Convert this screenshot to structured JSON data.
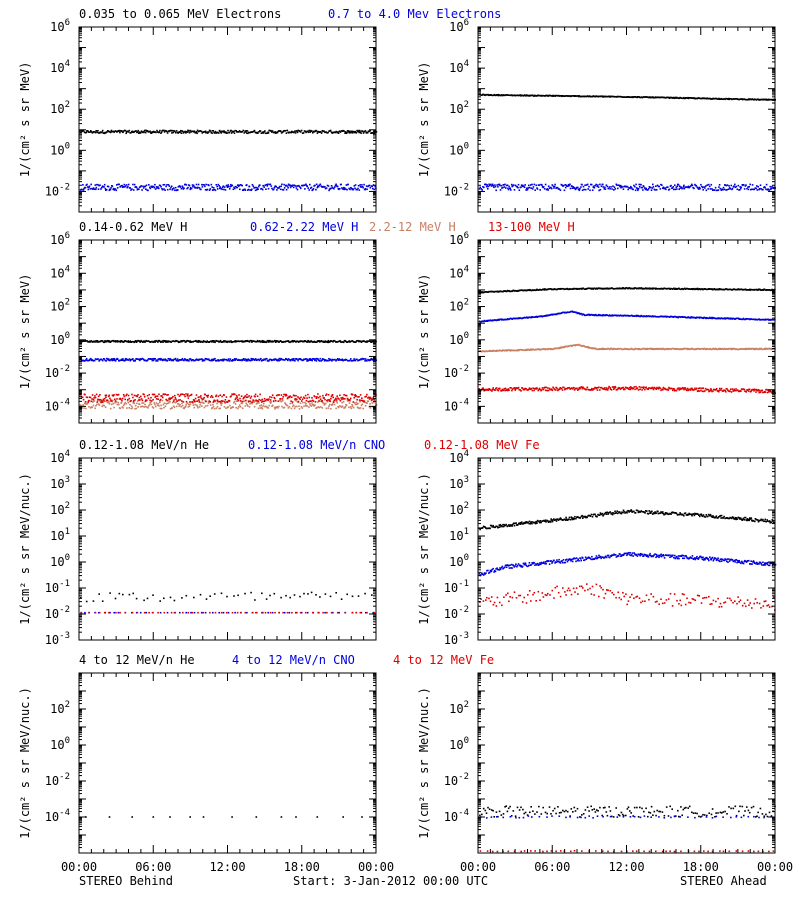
{
  "colors": {
    "black": "#000000",
    "blue": "#0000dd",
    "tan": "#c87f63",
    "red": "#dd0000"
  },
  "footer": {
    "left": "STEREO Behind",
    "center": "Start:  3-Jan-2012 00:00 UTC",
    "right": "STEREO Ahead"
  },
  "chart_data": [
    {
      "type": "scatter",
      "row": 0,
      "side": "left",
      "scale": "log",
      "ylabel": "1/(cm² s sr MeV)",
      "ylim": [
        0.001,
        1000000
      ],
      "ytick_exponents": [
        -2,
        0,
        2,
        4,
        6
      ],
      "xticks": [
        "00:00",
        "06:00",
        "12:00",
        "18:00",
        "00:00"
      ],
      "xlim_hours": [
        0,
        24
      ],
      "series": [
        {
          "name": "0.035 to 0.065 MeV Electrons",
          "color": "black",
          "log10_level": 0.9,
          "log10_jitter": 0.07,
          "density": "dense"
        },
        {
          "name": "0.7 to 4.0 Mev Electrons",
          "color": "blue",
          "log10_level": -1.8,
          "log10_jitter": 0.15,
          "density": "dense"
        }
      ]
    },
    {
      "type": "scatter",
      "row": 0,
      "side": "right",
      "scale": "log",
      "ylabel": "1/(cm² s sr MeV)",
      "ylim": [
        0.001,
        1000000
      ],
      "ytick_exponents": [
        -2,
        0,
        2,
        4,
        6
      ],
      "xticks": [
        "00:00",
        "06:00",
        "12:00",
        "18:00",
        "00:00"
      ],
      "xlim_hours": [
        0,
        24
      ],
      "series": [
        {
          "name": "0.035 to 0.065 MeV Electrons",
          "color": "black",
          "log10_profile": [
            [
              0,
              2.7
            ],
            [
              12,
              2.6
            ],
            [
              24,
              2.45
            ]
          ],
          "log10_jitter": 0.02,
          "density": "dense"
        },
        {
          "name": "0.7 to 4.0 Mev Electrons",
          "color": "blue",
          "log10_level": -1.8,
          "log10_jitter": 0.15,
          "density": "dense"
        }
      ]
    },
    {
      "type": "scatter",
      "row": 1,
      "side": "left",
      "scale": "log",
      "ylabel": "1/(cm² s sr MeV)",
      "ylim": [
        1e-05,
        1000000
      ],
      "ytick_exponents": [
        -4,
        -2,
        0,
        2,
        4,
        6
      ],
      "xticks": [
        "00:00",
        "06:00",
        "12:00",
        "18:00",
        "00:00"
      ],
      "xlim_hours": [
        0,
        24
      ],
      "series": [
        {
          "name": "0.14-0.62 MeV H",
          "color": "black",
          "log10_level": -0.1,
          "log10_jitter": 0.05,
          "density": "dense"
        },
        {
          "name": "0.62-2.22 MeV H",
          "color": "blue",
          "log10_level": -1.2,
          "log10_jitter": 0.07,
          "density": "dense"
        },
        {
          "name": "2.2-12 MeV H",
          "color": "tan",
          "log10_level": -3.9,
          "log10_jitter": 0.25,
          "density": "dense"
        },
        {
          "name": "13-100 MeV H",
          "color": "red",
          "log10_level": -3.5,
          "log10_jitter": 0.25,
          "density": "dense"
        }
      ]
    },
    {
      "type": "scatter",
      "row": 1,
      "side": "right",
      "scale": "log",
      "ylabel": "1/(cm² s sr MeV)",
      "ylim": [
        1e-05,
        1000000
      ],
      "ytick_exponents": [
        -4,
        -2,
        0,
        2,
        4,
        6
      ],
      "xticks": [
        "00:00",
        "06:00",
        "12:00",
        "18:00",
        "00:00"
      ],
      "xlim_hours": [
        0,
        24
      ],
      "series": [
        {
          "name": "0.14-0.62 MeV H",
          "color": "black",
          "log10_profile": [
            [
              0,
              2.85
            ],
            [
              6,
              3.05
            ],
            [
              12,
              3.1
            ],
            [
              24,
              3.0
            ]
          ],
          "log10_jitter": 0.03,
          "density": "dense"
        },
        {
          "name": "0.62-2.22 MeV H",
          "color": "blue",
          "log10_profile": [
            [
              0,
              1.1
            ],
            [
              5,
              1.4
            ],
            [
              7.5,
              1.7
            ],
            [
              8.5,
              1.5
            ],
            [
              12,
              1.45
            ],
            [
              24,
              1.2
            ]
          ],
          "log10_jitter": 0.03,
          "density": "dense"
        },
        {
          "name": "2.2-12 MeV H",
          "color": "tan",
          "log10_profile": [
            [
              0,
              -0.7
            ],
            [
              6,
              -0.55
            ],
            [
              8,
              -0.3
            ],
            [
              9.5,
              -0.55
            ],
            [
              24,
              -0.55
            ]
          ],
          "log10_jitter": 0.03,
          "density": "dense"
        },
        {
          "name": "13-100 MeV H",
          "color": "red",
          "log10_profile": [
            [
              0,
              -3.0
            ],
            [
              12,
              -2.9
            ],
            [
              24,
              -3.1
            ]
          ],
          "log10_jitter": 0.1,
          "density": "dense"
        }
      ]
    },
    {
      "type": "scatter",
      "row": 2,
      "side": "left",
      "scale": "log",
      "ylabel": "1/(cm² s sr MeV/nuc.)",
      "ylim": [
        0.001,
        10000
      ],
      "ytick_exponents": [
        -3,
        -2,
        -1,
        0,
        1,
        2,
        3,
        4
      ],
      "xticks": [
        "00:00",
        "06:00",
        "12:00",
        "18:00",
        "00:00"
      ],
      "xlim_hours": [
        0,
        24
      ],
      "series": [
        {
          "name": "0.12-1.08 MeV/n He",
          "color": "black",
          "log10_level": -1.35,
          "log10_jitter": 0.2,
          "density": "sparse"
        },
        {
          "name": "0.12-1.08 MeV/n CNO",
          "color": "blue",
          "log10_level": -1.95,
          "log10_jitter": 0.0,
          "density": "sparse"
        },
        {
          "name": "0.12-1.08 MeV Fe",
          "color": "red",
          "log10_level": -1.95,
          "log10_jitter": 0.0,
          "density": "sparse"
        }
      ]
    },
    {
      "type": "scatter",
      "row": 2,
      "side": "right",
      "scale": "log",
      "ylabel": "1/(cm² s sr MeV/nuc.)",
      "ylim": [
        0.001,
        10000
      ],
      "ytick_exponents": [
        -3,
        -2,
        -1,
        0,
        1,
        2,
        3,
        4
      ],
      "xticks": [
        "00:00",
        "06:00",
        "12:00",
        "18:00",
        "00:00"
      ],
      "xlim_hours": [
        0,
        24
      ],
      "series": [
        {
          "name": "0.12-1.08 MeV/n He",
          "color": "black",
          "log10_profile": [
            [
              0,
              1.3
            ],
            [
              6,
              1.6
            ],
            [
              12,
              1.95
            ],
            [
              18,
              1.8
            ],
            [
              24,
              1.55
            ]
          ],
          "log10_jitter": 0.06,
          "density": "dense"
        },
        {
          "name": "0.12-1.08 MeV/n CNO",
          "color": "blue",
          "log10_profile": [
            [
              0,
              -0.5
            ],
            [
              2,
              -0.2
            ],
            [
              6,
              0.0
            ],
            [
              12,
              0.3
            ],
            [
              18,
              0.15
            ],
            [
              24,
              -0.1
            ]
          ],
          "log10_jitter": 0.07,
          "density": "dense"
        },
        {
          "name": "0.12-1.08 MeV Fe",
          "color": "red",
          "log10_profile": [
            [
              0,
              -1.6
            ],
            [
              6,
              -1.2
            ],
            [
              9,
              -1.0
            ],
            [
              12,
              -1.4
            ],
            [
              24,
              -1.6
            ]
          ],
          "log10_jitter": 0.25,
          "density": "medium"
        }
      ]
    },
    {
      "type": "scatter",
      "row": 3,
      "side": "left",
      "scale": "log",
      "ylabel": "1/(cm² s sr MeV/nuc.)",
      "ylim": [
        1e-06,
        10000
      ],
      "ytick_exponents": [
        -4,
        -2,
        0,
        2
      ],
      "xticks": [
        "00:00",
        "06:00",
        "12:00",
        "18:00",
        "00:00"
      ],
      "xlim_hours": [
        0,
        24
      ],
      "series": [
        {
          "name": "4 to 12 MeV/n He",
          "color": "black",
          "log10_level": -4.0,
          "log10_jitter": 0.0,
          "density": "very-sparse"
        },
        {
          "name": "4 to 12 MeV/n CNO",
          "color": "blue",
          "log10_level": -5.5,
          "log10_jitter": 0.0,
          "density": "none"
        },
        {
          "name": "4 to 12 MeV Fe",
          "color": "red",
          "log10_level": -5.5,
          "log10_jitter": 0.0,
          "density": "none"
        }
      ]
    },
    {
      "type": "scatter",
      "row": 3,
      "side": "right",
      "scale": "log",
      "ylabel": "1/(cm² s sr MeV/nuc.)",
      "ylim": [
        1e-06,
        10000
      ],
      "ytick_exponents": [
        -4,
        -2,
        0,
        2
      ],
      "xticks": [
        "00:00",
        "06:00",
        "12:00",
        "18:00",
        "00:00"
      ],
      "xlim_hours": [
        0,
        24
      ],
      "series": [
        {
          "name": "4 to 12 MeV/n He",
          "color": "black",
          "log10_level": -3.7,
          "log10_jitter": 0.3,
          "density": "medium"
        },
        {
          "name": "4 to 12 MeV/n CNO",
          "color": "blue",
          "log10_level": -4.0,
          "log10_jitter": 0.05,
          "density": "sparse"
        },
        {
          "name": "4 to 12 MeV Fe",
          "color": "red",
          "log10_level": -5.9,
          "log10_jitter": 0.02,
          "density": "sparse"
        }
      ]
    }
  ],
  "row_titles": [
    [
      {
        "text": "0.035 to 0.065 MeV Electrons",
        "color": "black"
      },
      {
        "text": "0.7 to 4.0 Mev Electrons",
        "color": "blue"
      }
    ],
    [
      {
        "text": "0.14-0.62 MeV H",
        "color": "black"
      },
      {
        "text": "0.62-2.22 MeV H",
        "color": "blue"
      },
      {
        "text": "2.2-12 MeV H",
        "color": "tan"
      },
      {
        "text": "13-100 MeV H",
        "color": "red"
      }
    ],
    [
      {
        "text": "0.12-1.08 MeV/n He",
        "color": "black"
      },
      {
        "text": "0.12-1.08 MeV/n CNO",
        "color": "blue"
      },
      {
        "text": "0.12-1.08 MeV Fe",
        "color": "red"
      }
    ],
    [
      {
        "text": "4 to 12 MeV/n He",
        "color": "black"
      },
      {
        "text": "4 to 12 MeV/n CNO",
        "color": "blue"
      },
      {
        "text": "4 to 12 MeV Fe",
        "color": "red"
      }
    ]
  ]
}
